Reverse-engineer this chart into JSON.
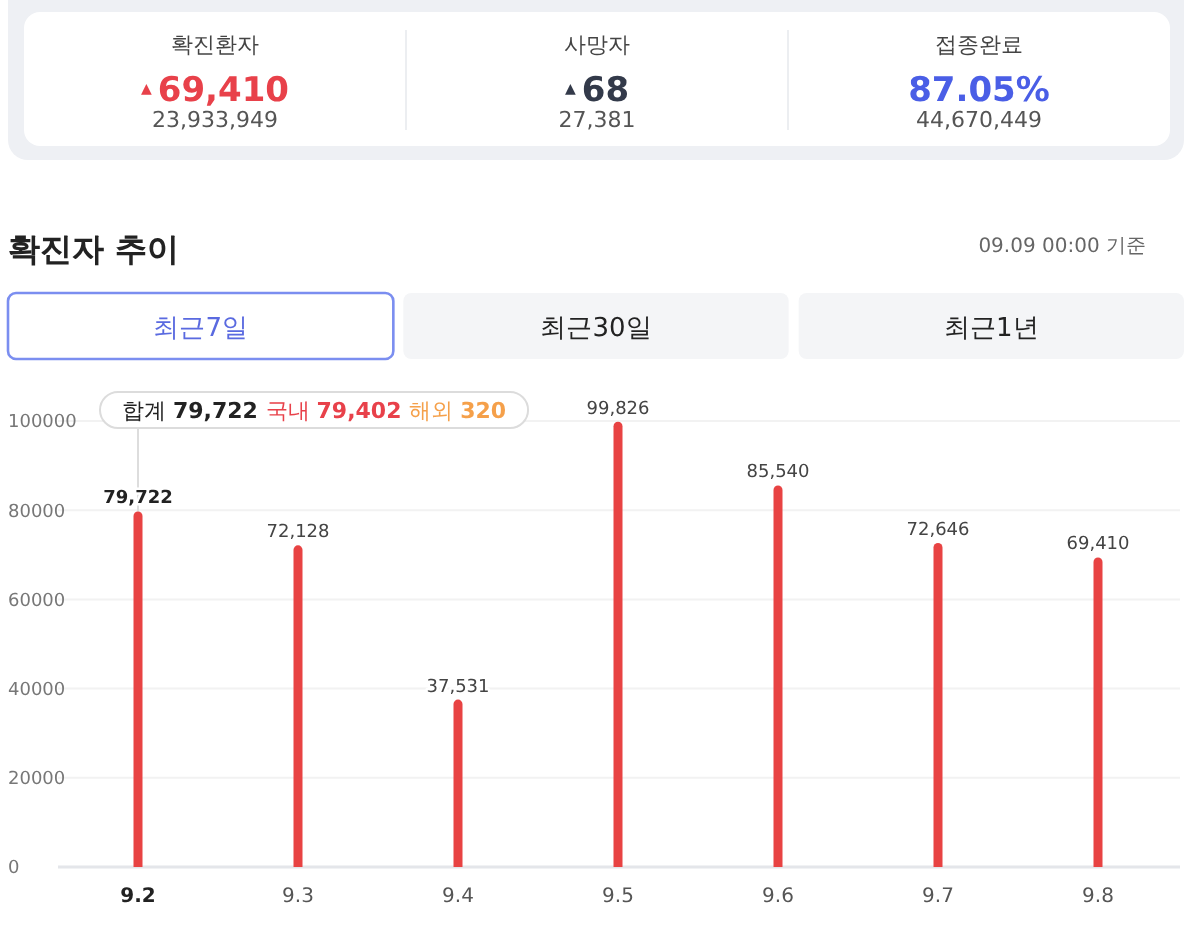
{
  "chart_data": [
    {
      "type": "other",
      "categories": [
        "확진환자",
        "사망자",
        "접종완료"
      ],
      "value_labels": [
        "$^{▲}$69,410",
        "$^{▲}$68",
        "87.05%"
      ],
      "annotations": [
        "23,933,949",
        "27,381",
        "44,670,449"
      ]
    },
    {
      "type": "bar",
      "title": "확진자 추이",
      "subtitle": "09.09 00:00 기준",
      "categories": [
        "9.2",
        "9.3",
        "9.4",
        "9.5",
        "9.6",
        "9.7",
        "9.8"
      ],
      "values": [
        79722,
        72128,
        37531,
        99826,
        85540,
        72646,
        69410
      ],
      "value_labels": [
        "79,722",
        "72,128",
        "37,531",
        "99,826",
        "85,540",
        "72,646",
        "69,410"
      ],
      "color": "#e84343",
      "ylim": [
        0,
        100000
      ],
      "yticks": [
        0,
        20000,
        40000,
        60000,
        80000,
        100000
      ],
      "grid": "y",
      "annotations": [
        {
          "text": "합계 79,722 국내 79,402 해외 320",
          "x": "9.2",
          "y": 79722
        },
        "최근7일",
        "최근30일",
        "최근1년"
      ]
    }
  ]
}
